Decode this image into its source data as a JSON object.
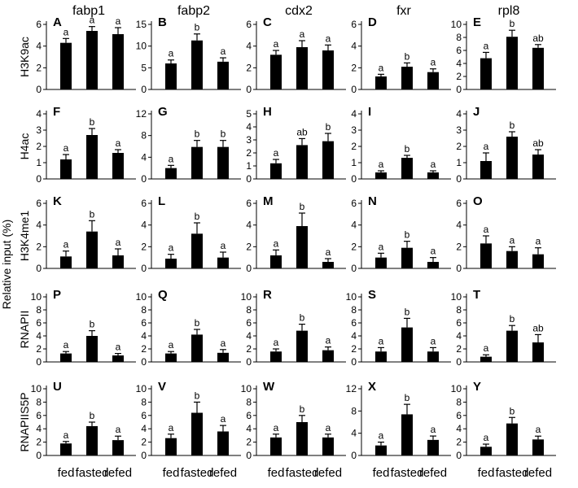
{
  "ylabel": "Relative input (%)",
  "categories": [
    "fed",
    "fasted",
    "refed"
  ],
  "genes": [
    "fabp1",
    "fabp2",
    "cdx2",
    "fxr",
    "rpl8"
  ],
  "marks": [
    "H3K9ac",
    "H4ac",
    "H3K4me1",
    "RNAPII",
    "RNAPIIS5P"
  ],
  "colors": {
    "bar": "#000000",
    "axis": "#000000"
  },
  "chart_data": [
    {
      "panel": "A",
      "gene": "fabp1",
      "mark": "H3K9ac",
      "type": "bar",
      "categories": [
        "fed",
        "fasted",
        "refed"
      ],
      "values": [
        4.3,
        5.4,
        5.1
      ],
      "errors": [
        0.4,
        0.4,
        0.6
      ],
      "significance": [
        "a",
        "a",
        "a"
      ],
      "ylim": [
        0,
        6
      ],
      "yticks": [
        0,
        2,
        4,
        6
      ]
    },
    {
      "panel": "B",
      "gene": "fabp2",
      "mark": "H3K9ac",
      "type": "bar",
      "categories": [
        "fed",
        "fasted",
        "refed"
      ],
      "values": [
        6.0,
        11.3,
        6.4
      ],
      "errors": [
        0.8,
        1.5,
        0.9
      ],
      "significance": [
        "a",
        "b",
        "a"
      ],
      "ylim": [
        0,
        15
      ],
      "yticks": [
        0,
        5,
        10,
        15
      ]
    },
    {
      "panel": "C",
      "gene": "cdx2",
      "mark": "H3K9ac",
      "type": "bar",
      "categories": [
        "fed",
        "fasted",
        "refed"
      ],
      "values": [
        3.2,
        3.9,
        3.6
      ],
      "errors": [
        0.4,
        0.6,
        0.5
      ],
      "significance": [
        "a",
        "a",
        "a"
      ],
      "ylim": [
        0,
        6
      ],
      "yticks": [
        0,
        2,
        4,
        6
      ]
    },
    {
      "panel": "D",
      "gene": "fxr",
      "mark": "H3K9ac",
      "type": "bar",
      "categories": [
        "fed",
        "fasted",
        "refed"
      ],
      "values": [
        1.2,
        2.1,
        1.6
      ],
      "errors": [
        0.2,
        0.35,
        0.3
      ],
      "significance": [
        "a",
        "b",
        "a"
      ],
      "ylim": [
        0,
        6
      ],
      "yticks": [
        0,
        2,
        4,
        6
      ]
    },
    {
      "panel": "E",
      "gene": "rpl8",
      "mark": "H3K9ac",
      "type": "bar",
      "categories": [
        "fed",
        "fasted",
        "refed"
      ],
      "values": [
        4.8,
        8.1,
        6.4
      ],
      "errors": [
        0.9,
        1.0,
        0.5
      ],
      "significance": [
        "a",
        "b",
        "ab"
      ],
      "ylim": [
        0,
        10
      ],
      "yticks": [
        0,
        2,
        4,
        6,
        8,
        10
      ]
    },
    {
      "panel": "F",
      "gene": "fabp1",
      "mark": "H4ac",
      "type": "bar",
      "categories": [
        "fed",
        "fasted",
        "refed"
      ],
      "values": [
        1.2,
        2.7,
        1.6
      ],
      "errors": [
        0.3,
        0.4,
        0.2
      ],
      "significance": [
        "a",
        "b",
        "a"
      ],
      "ylim": [
        0,
        4
      ],
      "yticks": [
        0,
        1,
        2,
        3,
        4
      ]
    },
    {
      "panel": "G",
      "gene": "fabp2",
      "mark": "H4ac",
      "type": "bar",
      "categories": [
        "fed",
        "fasted",
        "refed"
      ],
      "values": [
        2.0,
        5.9,
        5.9
      ],
      "errors": [
        0.5,
        1.2,
        1.2
      ],
      "significance": [
        "a",
        "b",
        "b"
      ],
      "ylim": [
        0,
        12
      ],
      "yticks": [
        0,
        4,
        8,
        12
      ]
    },
    {
      "panel": "H",
      "gene": "cdx2",
      "mark": "H4ac",
      "type": "bar",
      "categories": [
        "fed",
        "fasted",
        "refed"
      ],
      "values": [
        1.2,
        2.6,
        2.9
      ],
      "errors": [
        0.3,
        0.5,
        0.6
      ],
      "significance": [
        "a",
        "ab",
        "b"
      ],
      "ylim": [
        0,
        5
      ],
      "yticks": [
        0,
        1,
        2,
        3,
        4,
        5
      ]
    },
    {
      "panel": "I",
      "gene": "fxr",
      "mark": "H4ac",
      "type": "bar",
      "categories": [
        "fed",
        "fasted",
        "refed"
      ],
      "values": [
        0.4,
        1.3,
        0.4
      ],
      "errors": [
        0.1,
        0.15,
        0.1
      ],
      "significance": [
        "a",
        "b",
        "a"
      ],
      "ylim": [
        0,
        4
      ],
      "yticks": [
        0,
        1,
        2,
        3,
        4
      ]
    },
    {
      "panel": "J",
      "gene": "rpl8",
      "mark": "H4ac",
      "type": "bar",
      "categories": [
        "fed",
        "fasted",
        "refed"
      ],
      "values": [
        1.1,
        2.6,
        1.5
      ],
      "errors": [
        0.5,
        0.3,
        0.3
      ],
      "significance": [
        "a",
        "b",
        "ab"
      ],
      "ylim": [
        0,
        4
      ],
      "yticks": [
        0,
        1,
        2,
        3,
        4
      ]
    },
    {
      "panel": "K",
      "gene": "fabp1",
      "mark": "H3K4me1",
      "type": "bar",
      "categories": [
        "fed",
        "fasted",
        "refed"
      ],
      "values": [
        1.1,
        3.4,
        1.2
      ],
      "errors": [
        0.5,
        1.0,
        0.6
      ],
      "significance": [
        "a",
        "b",
        "a"
      ],
      "ylim": [
        0,
        6
      ],
      "yticks": [
        0,
        2,
        4,
        6
      ]
    },
    {
      "panel": "L",
      "gene": "fabp2",
      "mark": "H3K4me1",
      "type": "bar",
      "categories": [
        "fed",
        "fasted",
        "refed"
      ],
      "values": [
        0.9,
        3.2,
        1.0
      ],
      "errors": [
        0.4,
        1.0,
        0.5
      ],
      "significance": [
        "a",
        "b",
        "a"
      ],
      "ylim": [
        0,
        6
      ],
      "yticks": [
        0,
        2,
        4,
        6
      ]
    },
    {
      "panel": "M",
      "gene": "cdx2",
      "mark": "H3K4me1",
      "type": "bar",
      "categories": [
        "fed",
        "fasted",
        "refed"
      ],
      "values": [
        1.2,
        3.9,
        0.6
      ],
      "errors": [
        0.5,
        1.2,
        0.3
      ],
      "significance": [
        "a",
        "b",
        "a"
      ],
      "ylim": [
        0,
        6
      ],
      "yticks": [
        0,
        2,
        4,
        6
      ]
    },
    {
      "panel": "N",
      "gene": "fxr",
      "mark": "H3K4me1",
      "type": "bar",
      "categories": [
        "fed",
        "fasted",
        "refed"
      ],
      "values": [
        1.0,
        1.9,
        0.6
      ],
      "errors": [
        0.4,
        0.6,
        0.4
      ],
      "significance": [
        "a",
        "b",
        "a"
      ],
      "ylim": [
        0,
        6
      ],
      "yticks": [
        0,
        2,
        4,
        6
      ]
    },
    {
      "panel": "O",
      "gene": "rpl8",
      "mark": "H3K4me1",
      "type": "bar",
      "categories": [
        "fed",
        "fasted",
        "refed"
      ],
      "values": [
        2.3,
        1.6,
        1.3
      ],
      "errors": [
        0.7,
        0.4,
        0.6
      ],
      "significance": [
        "a",
        "a",
        "a"
      ],
      "ylim": [
        0,
        6
      ],
      "yticks": [
        0,
        2,
        4,
        6
      ]
    },
    {
      "panel": "P",
      "gene": "fabp1",
      "mark": "RNAPII",
      "type": "bar",
      "categories": [
        "fed",
        "fasted",
        "refed"
      ],
      "values": [
        1.3,
        4.0,
        1.0
      ],
      "errors": [
        0.3,
        0.8,
        0.3
      ],
      "significance": [
        "a",
        "b",
        "a"
      ],
      "ylim": [
        0,
        10
      ],
      "yticks": [
        0,
        2,
        4,
        6,
        8,
        10
      ]
    },
    {
      "panel": "Q",
      "gene": "fabp2",
      "mark": "RNAPII",
      "type": "bar",
      "categories": [
        "fed",
        "fasted",
        "refed"
      ],
      "values": [
        1.3,
        4.2,
        1.4
      ],
      "errors": [
        0.3,
        0.8,
        0.5
      ],
      "significance": [
        "a",
        "b",
        "a"
      ],
      "ylim": [
        0,
        10
      ],
      "yticks": [
        0,
        2,
        4,
        6,
        8,
        10
      ]
    },
    {
      "panel": "R",
      "gene": "cdx2",
      "mark": "RNAPII",
      "type": "bar",
      "categories": [
        "fed",
        "fasted",
        "refed"
      ],
      "values": [
        1.6,
        4.8,
        1.8
      ],
      "errors": [
        0.4,
        1.0,
        0.5
      ],
      "significance": [
        "a",
        "b",
        "a"
      ],
      "ylim": [
        0,
        10
      ],
      "yticks": [
        0,
        2,
        4,
        6,
        8,
        10
      ]
    },
    {
      "panel": "S",
      "gene": "fxr",
      "mark": "RNAPII",
      "type": "bar",
      "categories": [
        "fed",
        "fasted",
        "refed"
      ],
      "values": [
        1.6,
        5.3,
        1.6
      ],
      "errors": [
        0.6,
        1.4,
        0.6
      ],
      "significance": [
        "a",
        "b",
        "a"
      ],
      "ylim": [
        0,
        10
      ],
      "yticks": [
        0,
        2,
        4,
        6,
        8,
        10
      ]
    },
    {
      "panel": "T",
      "gene": "rpl8",
      "mark": "RNAPII",
      "type": "bar",
      "categories": [
        "fed",
        "fasted",
        "refed"
      ],
      "values": [
        0.8,
        4.8,
        3.0
      ],
      "errors": [
        0.3,
        0.8,
        1.2
      ],
      "significance": [
        "a",
        "b",
        "ab"
      ],
      "ylim": [
        0,
        10
      ],
      "yticks": [
        0,
        2,
        4,
        6,
        8,
        10
      ]
    },
    {
      "panel": "U",
      "gene": "fabp1",
      "mark": "RNAPIIS5P",
      "type": "bar",
      "categories": [
        "fed",
        "fasted",
        "refed"
      ],
      "values": [
        1.8,
        4.4,
        2.3
      ],
      "errors": [
        0.3,
        0.6,
        0.6
      ],
      "significance": [
        "a",
        "b",
        "a"
      ],
      "ylim": [
        0,
        10
      ],
      "yticks": [
        0,
        2,
        4,
        6,
        8,
        10
      ]
    },
    {
      "panel": "V",
      "gene": "fabp2",
      "mark": "RNAPIIS5P",
      "type": "bar",
      "categories": [
        "fed",
        "fasted",
        "refed"
      ],
      "values": [
        2.6,
        6.4,
        3.6
      ],
      "errors": [
        0.6,
        1.6,
        0.9
      ],
      "significance": [
        "a",
        "b",
        "a"
      ],
      "ylim": [
        0,
        10
      ],
      "yticks": [
        0,
        2,
        4,
        6,
        8,
        10
      ]
    },
    {
      "panel": "W",
      "gene": "cdx2",
      "mark": "RNAPIIS5P",
      "type": "bar",
      "categories": [
        "fed",
        "fasted",
        "refed"
      ],
      "values": [
        2.7,
        5.0,
        2.7
      ],
      "errors": [
        0.5,
        1.0,
        0.5
      ],
      "significance": [
        "a",
        "b",
        "a"
      ],
      "ylim": [
        0,
        10
      ],
      "yticks": [
        0,
        2,
        4,
        6,
        8,
        10
      ]
    },
    {
      "panel": "X",
      "gene": "fxr",
      "mark": "RNAPIIS5P",
      "type": "bar",
      "categories": [
        "fed",
        "fasted",
        "refed"
      ],
      "values": [
        1.8,
        7.4,
        2.8
      ],
      "errors": [
        0.6,
        1.8,
        0.7
      ],
      "significance": [
        "a",
        "b",
        "a"
      ],
      "ylim": [
        0,
        12
      ],
      "yticks": [
        0,
        4,
        8,
        12
      ]
    },
    {
      "panel": "Y",
      "gene": "rpl8",
      "mark": "RNAPIIS5P",
      "type": "bar",
      "categories": [
        "fed",
        "fasted",
        "refed"
      ],
      "values": [
        1.3,
        4.8,
        2.4
      ],
      "errors": [
        0.4,
        0.9,
        0.5
      ],
      "significance": [
        "a",
        "b",
        "a"
      ],
      "ylim": [
        0,
        10
      ],
      "yticks": [
        0,
        2,
        4,
        6,
        8,
        10
      ]
    }
  ]
}
